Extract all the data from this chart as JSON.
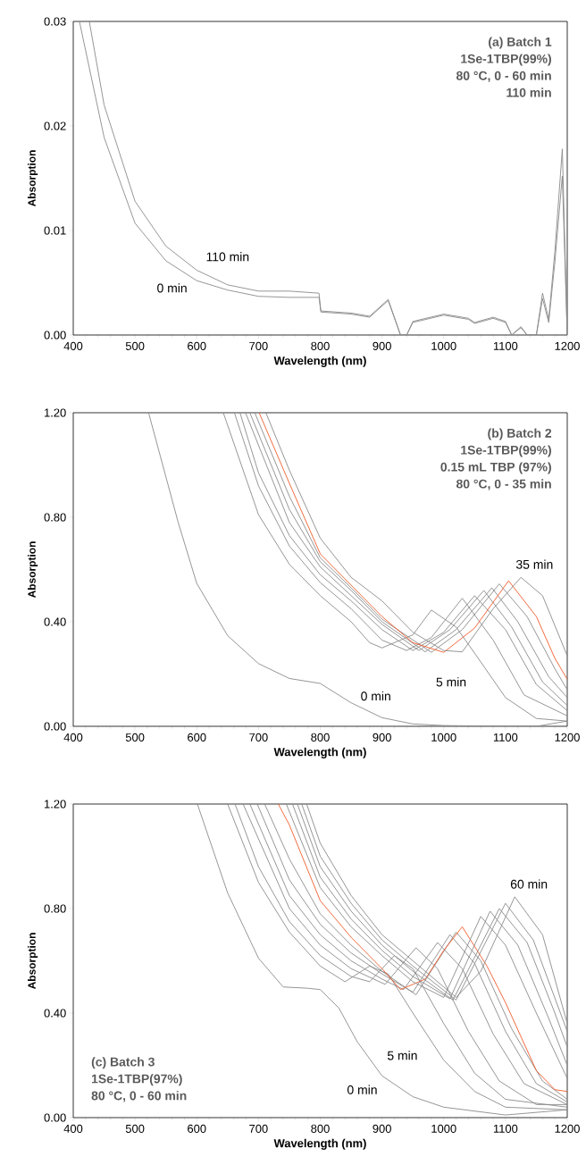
{
  "chart_data": [
    {
      "type": "line",
      "xlabel": "Wavelength (nm)",
      "ylabel": "Absorption",
      "xlim": [
        400,
        1200
      ],
      "ylim": [
        0,
        0.03
      ],
      "xticks": [
        400,
        500,
        600,
        700,
        800,
        900,
        1000,
        1100,
        1200
      ],
      "yticks": [
        {
          "value": 0,
          "label": "0.00"
        },
        {
          "value": 0.01,
          "label": "0.01"
        },
        {
          "value": 0.02,
          "label": "0.02"
        },
        {
          "value": 0.03,
          "label": "0.03"
        }
      ],
      "annotations": [
        "(a) Batch 1",
        "1Se-1TBP(99%)",
        "80 °C, 0 - 60 min",
        "110 min"
      ],
      "series": [
        {
          "name": "0 min",
          "color": "#8a8a8a",
          "x": [
            410,
            450,
            500,
            550,
            600,
            650,
            700,
            750,
            798,
            801,
            850,
            880,
            910,
            930,
            940,
            950,
            1000,
            1040,
            1050,
            1080,
            1100,
            1110,
            1125,
            1135,
            1150,
            1160,
            1170,
            1180,
            1192,
            1200
          ],
          "values": [
            0.03,
            0.0189,
            0.0107,
            0.0071,
            0.0052,
            0.0043,
            0.0037,
            0.0036,
            0.0036,
            0.0022,
            0.002,
            0.0017,
            0.0033,
            0.0,
            0.0,
            0.0012,
            0.0019,
            0.0015,
            0.0011,
            0.0016,
            0.0012,
            0.0,
            0.0007,
            0.0,
            0.0,
            0.0035,
            0.0012,
            0.007,
            0.0152,
            0.0
          ]
        },
        {
          "name": "110 min",
          "color": "#8a8a8a",
          "x": [
            426,
            450,
            500,
            550,
            600,
            650,
            700,
            750,
            798,
            801,
            850,
            880,
            910,
            930,
            940,
            950,
            1000,
            1040,
            1050,
            1080,
            1100,
            1110,
            1125,
            1135,
            1150,
            1160,
            1170,
            1180,
            1192,
            1200
          ],
          "values": [
            0.03,
            0.022,
            0.0128,
            0.0085,
            0.0062,
            0.0048,
            0.0042,
            0.0042,
            0.004,
            0.0023,
            0.0021,
            0.0018,
            0.0034,
            0.0,
            0.0,
            0.0013,
            0.002,
            0.0016,
            0.0012,
            0.0017,
            0.0013,
            0.0,
            0.0008,
            0.0,
            0.0,
            0.004,
            0.0015,
            0.008,
            0.0178,
            0.0
          ]
        }
      ]
    },
    {
      "type": "line",
      "xlabel": "Wavelength (nm)",
      "ylabel": "Absorption",
      "xlim": [
        400,
        1200
      ],
      "ylim": [
        0,
        1.2
      ],
      "xticks": [
        400,
        500,
        600,
        700,
        800,
        900,
        1000,
        1100,
        1200
      ],
      "yticks": [
        {
          "value": 0,
          "label": "0.00"
        },
        {
          "value": 0.4,
          "label": "0.40"
        },
        {
          "value": 0.8,
          "label": "0.80"
        },
        {
          "value": 1.2,
          "label": "1.20"
        }
      ],
      "annotations": [
        "(b) Batch 2",
        "1Se-1TBP(99%)",
        "0.15 mL TBP (97%)",
        "80 °C, 0 - 35 min"
      ],
      "series": [
        {
          "name": "0 min",
          "color": "#8a8a8a",
          "x": [
            522,
            570,
            600,
            650,
            700,
            750,
            800,
            850,
            900,
            950,
            1000,
            1100,
            1150,
            1200
          ],
          "values": [
            1.2,
            0.78,
            0.547,
            0.347,
            0.24,
            0.183,
            0.164,
            0.09,
            0.033,
            0.009,
            0.003,
            0.0,
            0.0,
            0.02
          ]
        },
        {
          "name": "5 min",
          "color": "#8a8a8a",
          "x": [
            643,
            700,
            750,
            800,
            850,
            880,
            900,
            950,
            980,
            1020,
            1050,
            1100,
            1150,
            1200
          ],
          "values": [
            1.2,
            0.81,
            0.62,
            0.5,
            0.4,
            0.32,
            0.3,
            0.35,
            0.445,
            0.38,
            0.28,
            0.11,
            0.03,
            0.02
          ]
        },
        {
          "color": "#8a8a8a",
          "x": [
            661,
            700,
            750,
            800,
            850,
            900,
            940,
            980,
            1030,
            1080,
            1130,
            1200
          ],
          "values": [
            1.2,
            0.92,
            0.69,
            0.55,
            0.45,
            0.33,
            0.29,
            0.34,
            0.49,
            0.33,
            0.12,
            0.04
          ]
        },
        {
          "color": "#8a8a8a",
          "x": [
            670,
            700,
            750,
            800,
            850,
            900,
            950,
            1000,
            1050,
            1100,
            1150,
            1200
          ],
          "values": [
            1.2,
            0.97,
            0.73,
            0.58,
            0.48,
            0.37,
            0.29,
            0.36,
            0.5,
            0.37,
            0.16,
            0.06
          ]
        },
        {
          "color": "#8a8a8a",
          "x": [
            679,
            750,
            800,
            850,
            900,
            960,
            1010,
            1065,
            1110,
            1160,
            1200
          ],
          "values": [
            1.2,
            0.78,
            0.61,
            0.5,
            0.39,
            0.29,
            0.37,
            0.52,
            0.38,
            0.17,
            0.08
          ]
        },
        {
          "color": "#8a8a8a",
          "x": [
            686,
            750,
            800,
            850,
            900,
            970,
            1020,
            1078,
            1120,
            1170,
            1200
          ],
          "values": [
            1.2,
            0.83,
            0.63,
            0.52,
            0.4,
            0.285,
            0.37,
            0.53,
            0.4,
            0.19,
            0.11
          ]
        },
        {
          "color": "#8a8a8a",
          "x": [
            694,
            750,
            800,
            850,
            900,
            980,
            1030,
            1090,
            1135,
            1180,
            1200
          ],
          "values": [
            1.2,
            0.88,
            0.645,
            0.53,
            0.41,
            0.283,
            0.37,
            0.545,
            0.42,
            0.22,
            0.14
          ]
        },
        {
          "color": "#f05a28",
          "x": [
            701,
            750,
            800,
            850,
            900,
            950,
            1000,
            1050,
            1105,
            1150,
            1180,
            1200
          ],
          "values": [
            1.2,
            0.93,
            0.66,
            0.54,
            0.42,
            0.32,
            0.283,
            0.376,
            0.557,
            0.42,
            0.26,
            0.18
          ]
        },
        {
          "name": "35 min",
          "color": "#8a8a8a",
          "x": [
            712,
            750,
            800,
            850,
            900,
            950,
            1000,
            1030,
            1080,
            1125,
            1160,
            1200
          ],
          "values": [
            1.2,
            0.98,
            0.72,
            0.57,
            0.48,
            0.36,
            0.29,
            0.285,
            0.45,
            0.57,
            0.5,
            0.27
          ]
        }
      ]
    },
    {
      "type": "line",
      "xlabel": "Wavelength (nm)",
      "ylabel": "Absorption",
      "xlim": [
        400,
        1200
      ],
      "ylim": [
        0,
        1.2
      ],
      "xticks": [
        400,
        500,
        600,
        700,
        800,
        900,
        1000,
        1100,
        1200
      ],
      "yticks": [
        {
          "value": 0,
          "label": "0.00"
        },
        {
          "value": 0.4,
          "label": "0.40"
        },
        {
          "value": 0.8,
          "label": "0.80"
        },
        {
          "value": 1.2,
          "label": "1.20"
        }
      ],
      "annotations": [
        "(c) Batch 3",
        "1Se-1TBP(97%)",
        "80 °C, 0 - 60 min"
      ],
      "series": [
        {
          "name": "0 min",
          "color": "#8a8a8a",
          "x": [
            601,
            650,
            700,
            740,
            780,
            800,
            830,
            860,
            900,
            950,
            1000,
            1100,
            1200
          ],
          "values": [
            1.2,
            0.86,
            0.61,
            0.5,
            0.495,
            0.49,
            0.42,
            0.29,
            0.16,
            0.08,
            0.04,
            0.01,
            0.03
          ]
        },
        {
          "name": "5 min",
          "color": "#8a8a8a",
          "x": [
            650,
            700,
            750,
            800,
            840,
            880,
            910,
            950,
            1000,
            1050,
            1100,
            1200
          ],
          "values": [
            1.2,
            0.9,
            0.71,
            0.58,
            0.52,
            0.58,
            0.55,
            0.4,
            0.22,
            0.1,
            0.04,
            0.03
          ]
        },
        {
          "color": "#8a8a8a",
          "x": [
            662,
            700,
            750,
            800,
            850,
            880,
            920,
            950,
            1000,
            1050,
            1100,
            1200
          ],
          "values": [
            1.2,
            0.96,
            0.75,
            0.62,
            0.54,
            0.52,
            0.62,
            0.57,
            0.36,
            0.17,
            0.07,
            0.04
          ]
        },
        {
          "color": "#8a8a8a",
          "x": [
            675,
            750,
            800,
            850,
            905,
            955,
            990,
            1040,
            1090,
            1150,
            1200
          ],
          "values": [
            1.2,
            0.8,
            0.66,
            0.57,
            0.51,
            0.65,
            0.57,
            0.33,
            0.14,
            0.05,
            0.05
          ]
        },
        {
          "color": "#8a8a8a",
          "x": [
            686,
            750,
            800,
            850,
            900,
            935,
            990,
            1030,
            1080,
            1130,
            1200
          ],
          "values": [
            1.2,
            0.85,
            0.7,
            0.6,
            0.53,
            0.49,
            0.67,
            0.57,
            0.32,
            0.13,
            0.05
          ]
        },
        {
          "color": "#8a8a8a",
          "x": [
            698,
            750,
            800,
            850,
            900,
            950,
            1010,
            1050,
            1100,
            1150,
            1200
          ],
          "values": [
            1.2,
            0.91,
            0.74,
            0.63,
            0.55,
            0.48,
            0.7,
            0.59,
            0.33,
            0.13,
            0.06
          ]
        },
        {
          "color": "#8a8a8a",
          "x": [
            710,
            750,
            800,
            850,
            900,
            955,
            1020,
            1060,
            1110,
            1160,
            1200
          ],
          "values": [
            1.2,
            0.99,
            0.78,
            0.66,
            0.56,
            0.47,
            0.71,
            0.6,
            0.34,
            0.14,
            0.07
          ]
        },
        {
          "color": "#f05a28",
          "x": [
            732,
            750,
            800,
            850,
            900,
            930,
            970,
            1000,
            1030,
            1070,
            1100,
            1150,
            1180,
            1200
          ],
          "values": [
            1.2,
            1.12,
            0.83,
            0.69,
            0.57,
            0.49,
            0.53,
            0.64,
            0.73,
            0.58,
            0.44,
            0.18,
            0.107,
            0.1
          ]
        },
        {
          "color": "#8a8a8a",
          "x": [
            745,
            800,
            850,
            900,
            950,
            1000,
            1060,
            1100,
            1150,
            1200
          ],
          "values": [
            1.2,
            0.88,
            0.73,
            0.62,
            0.52,
            0.46,
            0.77,
            0.66,
            0.4,
            0.15
          ]
        },
        {
          "color": "#8a8a8a",
          "x": [
            755,
            800,
            850,
            900,
            950,
            1010,
            1075,
            1120,
            1170,
            1200
          ],
          "values": [
            1.2,
            0.92,
            0.76,
            0.64,
            0.54,
            0.455,
            0.79,
            0.66,
            0.38,
            0.2
          ]
        },
        {
          "color": "#8a8a8a",
          "x": [
            763,
            800,
            850,
            900,
            950,
            1015,
            1090,
            1135,
            1180,
            1200
          ],
          "values": [
            1.2,
            0.96,
            0.79,
            0.66,
            0.56,
            0.45,
            0.8,
            0.67,
            0.4,
            0.27
          ]
        },
        {
          "color": "#8a8a8a",
          "x": [
            770,
            800,
            850,
            900,
            950,
            1020,
            1100,
            1145,
            1200
          ],
          "values": [
            1.2,
            1.0,
            0.82,
            0.68,
            0.58,
            0.45,
            0.82,
            0.68,
            0.33
          ]
        },
        {
          "name": "60 min",
          "color": "#8a8a8a",
          "x": [
            778,
            800,
            850,
            900,
            950,
            1020,
            1060,
            1115,
            1160,
            1200
          ],
          "values": [
            1.2,
            1.05,
            0.85,
            0.7,
            0.6,
            0.46,
            0.56,
            0.845,
            0.7,
            0.36
          ]
        }
      ]
    }
  ]
}
